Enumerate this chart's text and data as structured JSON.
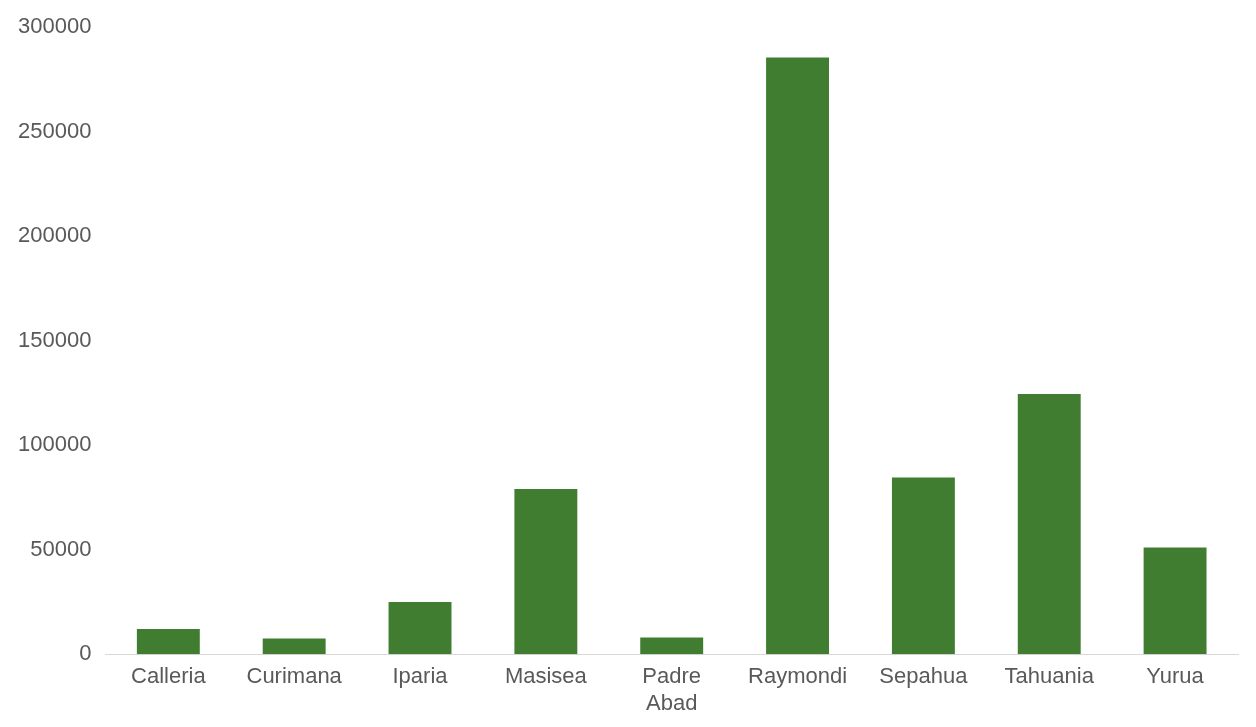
{
  "chart_data": {
    "type": "bar",
    "categories": [
      "Calleria",
      "Curimana",
      "Iparia",
      "Masisea",
      "Padre Abad",
      "Raymondi",
      "Sepahua",
      "Tahuania",
      "Yurua"
    ],
    "values": [
      12000,
      7500,
      25000,
      79000,
      8000,
      285500,
      84500,
      124500,
      51000
    ],
    "color": "#417d30",
    "ylim": [
      0,
      300000
    ],
    "yticks": [
      0,
      50000,
      100000,
      150000,
      200000,
      250000,
      300000
    ],
    "grid": false,
    "legend": false
  }
}
